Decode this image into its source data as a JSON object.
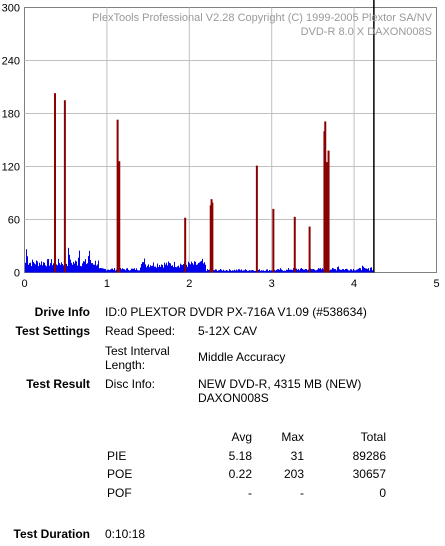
{
  "chart_data": {
    "type": "bar",
    "header": {
      "line1": "PlexTools Professional V2.28 Copyright (C) 1999-2005 Plextor SA/NV",
      "line2": "DVD-R    8.0 X    DAXON008S"
    },
    "ylim": [
      0,
      300
    ],
    "y_ticks": [
      "0",
      "60",
      "120",
      "180",
      "240",
      "300"
    ],
    "xlim": [
      0,
      5
    ],
    "x_ticks": [
      "0",
      "1",
      "2",
      "3",
      "4",
      "5"
    ],
    "grid": true,
    "end_marker_x": 4.24,
    "colors": {
      "pie": "#0000ee",
      "poe": "#8b0000",
      "grid": "#c0c0c0",
      "marker": "#000000"
    },
    "series": [
      {
        "key": "pie",
        "segments": [
          {
            "x0": 0.0,
            "x1": 0.9,
            "base": 12,
            "spikes": [
              [
                0.02,
                28
              ],
              [
                0.28,
                18
              ],
              [
                0.53,
                30
              ],
              [
                0.66,
                26
              ],
              [
                0.78,
                27
              ]
            ]
          },
          {
            "x0": 0.9,
            "x1": 1.4,
            "base": 4,
            "spikes": [
              [
                1.15,
                6
              ]
            ]
          },
          {
            "x0": 1.4,
            "x1": 2.2,
            "base": 10,
            "spikes": [
              [
                1.45,
                16
              ],
              [
                1.95,
                12
              ],
              [
                2.15,
                18
              ]
            ]
          },
          {
            "x0": 2.2,
            "x1": 3.2,
            "base": 3,
            "spikes": [
              [
                2.6,
                4
              ],
              [
                3.1,
                5
              ]
            ]
          },
          {
            "x0": 3.2,
            "x1": 4.24,
            "base": 4,
            "spikes": [
              [
                3.8,
                8
              ],
              [
                4.1,
                9
              ],
              [
                4.2,
                7
              ]
            ]
          }
        ]
      },
      {
        "key": "poe",
        "spikes": [
          [
            0.37,
            203
          ],
          [
            0.49,
            195
          ],
          [
            1.13,
            173
          ],
          [
            1.15,
            126
          ],
          [
            1.95,
            62
          ],
          [
            2.26,
            76
          ],
          [
            2.27,
            83
          ],
          [
            2.28,
            79
          ],
          [
            2.82,
            121
          ],
          [
            3.02,
            72
          ],
          [
            3.28,
            63
          ],
          [
            3.46,
            52
          ],
          [
            3.64,
            160
          ],
          [
            3.65,
            171
          ],
          [
            3.67,
            125
          ],
          [
            3.69,
            138
          ]
        ]
      }
    ]
  },
  "drive_info": {
    "label": "Drive Info",
    "value": "ID:0 PLEXTOR DVDR PX-716A V1.09 (#538634)"
  },
  "test_settings": {
    "label": "Test Settings",
    "read_speed_label": "Read Speed:",
    "read_speed_value": "5-12X CAV",
    "interval_label_1": "Test Interval",
    "interval_label_2": "Length:",
    "interval_value": "Middle Accuracy"
  },
  "test_result": {
    "label": "Test Result",
    "disc_info_label": "Disc Info:",
    "disc_info_1": "NEW DVD-R, 4315 MB (NEW)",
    "disc_info_2": "DAXON008S"
  },
  "stats": {
    "headers": {
      "avg": "Avg",
      "max": "Max",
      "total": "Total"
    },
    "rows": [
      {
        "name": "PIE",
        "avg": "5.18",
        "max": "31",
        "total": "89286"
      },
      {
        "name": "POE",
        "avg": "0.22",
        "max": "203",
        "total": "30657"
      },
      {
        "name": "POF",
        "avg": "-",
        "max": "-",
        "total": "0"
      }
    ]
  },
  "test_duration": {
    "label": "Test Duration",
    "value": "0:10:18"
  }
}
